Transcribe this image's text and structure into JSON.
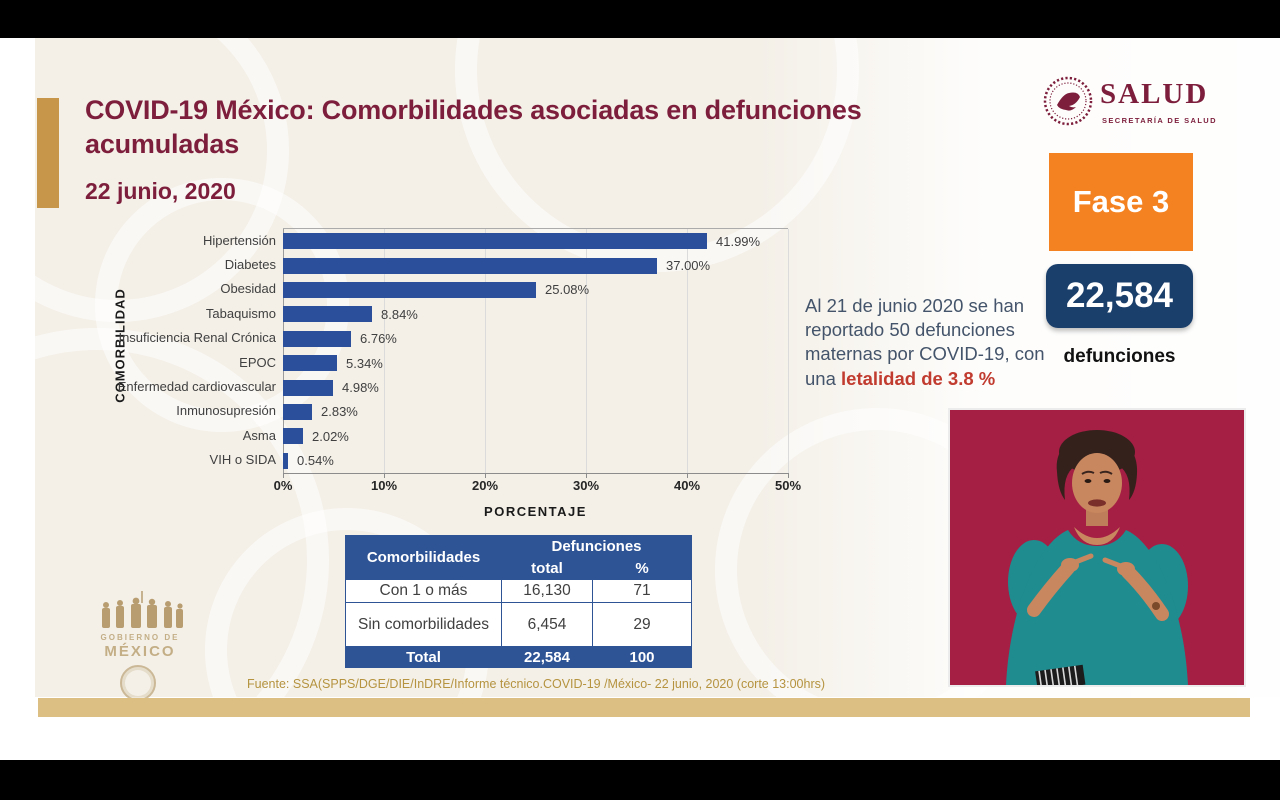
{
  "slide": {
    "title": "COVID-19 México: Comorbilidades asociadas en defunciones acumuladas",
    "date": "22 junio, 2020",
    "source": "Fuente: SSA(SPPS/DGE/DIE/InDRE/Informe técnico.COVID-19 /México- 22 junio, 2020 (corte 13:00hrs)"
  },
  "header_logo": {
    "name": "SALUD",
    "subtitle": "SECRETARÍA DE SALUD"
  },
  "badges": {
    "phase": "Fase 3",
    "deaths_total": "22,584",
    "deaths_caption": "defunciones"
  },
  "maternal_note": {
    "text": "Al 21 de junio 2020 se han reportado 50 defunciones maternas por COVID-19, con una",
    "highlight": "letalidad de 3.8 %"
  },
  "chart_data": {
    "type": "bar",
    "orientation": "horizontal",
    "categories": [
      "Hipertensión",
      "Diabetes",
      "Obesidad",
      "Tabaquismo",
      "Insuficiencia Renal Crónica",
      "EPOC",
      "Enfermedad cardiovascular",
      "Inmunosupresión",
      "Asma",
      "VIH o SIDA"
    ],
    "values": [
      41.99,
      37.0,
      25.08,
      8.84,
      6.76,
      5.34,
      4.98,
      2.83,
      2.02,
      0.54
    ],
    "value_labels": [
      "41.99%",
      "37.00%",
      "25.08%",
      "8.84%",
      "6.76%",
      "5.34%",
      "4.98%",
      "2.83%",
      "2.02%",
      "0.54%"
    ],
    "xlabel": "PORCENTAJE",
    "ylabel": "COMORBILIDAD",
    "xlim": [
      0,
      50
    ],
    "x_ticks": [
      "0%",
      "10%",
      "20%",
      "30%",
      "40%",
      "50%"
    ],
    "grid": true,
    "legend": "none"
  },
  "summary_table": {
    "col_header_1": "Comorbilidades",
    "col_header_2": "Defunciones",
    "sub_header_total": "total",
    "sub_header_pct": "%",
    "rows": [
      {
        "label": "Con 1 o más",
        "total": "16,130",
        "pct": "71"
      },
      {
        "label": "Sin comorbilidades",
        "total": "6,454",
        "pct": "29"
      }
    ],
    "total_row": {
      "label": "Total",
      "total": "22,584",
      "pct": "100"
    }
  },
  "gov_logo": {
    "line1": "GOBIERNO DE",
    "line2": "MÉXICO"
  },
  "colors": {
    "maroon": "#7D1F3C",
    "bar_blue": "#2B4F9B",
    "table_blue": "#2F5496",
    "navy_badge": "#1B3F6B",
    "phase_orange": "#F58220",
    "accent_gold": "#C8964B",
    "band_gold": "#DCBF83",
    "source_gold": "#B5933F",
    "note_red": "#C13B2F",
    "video_crimson": "#A51E44",
    "teal": "#1F8C8F",
    "cream": "#F4F0E8"
  }
}
